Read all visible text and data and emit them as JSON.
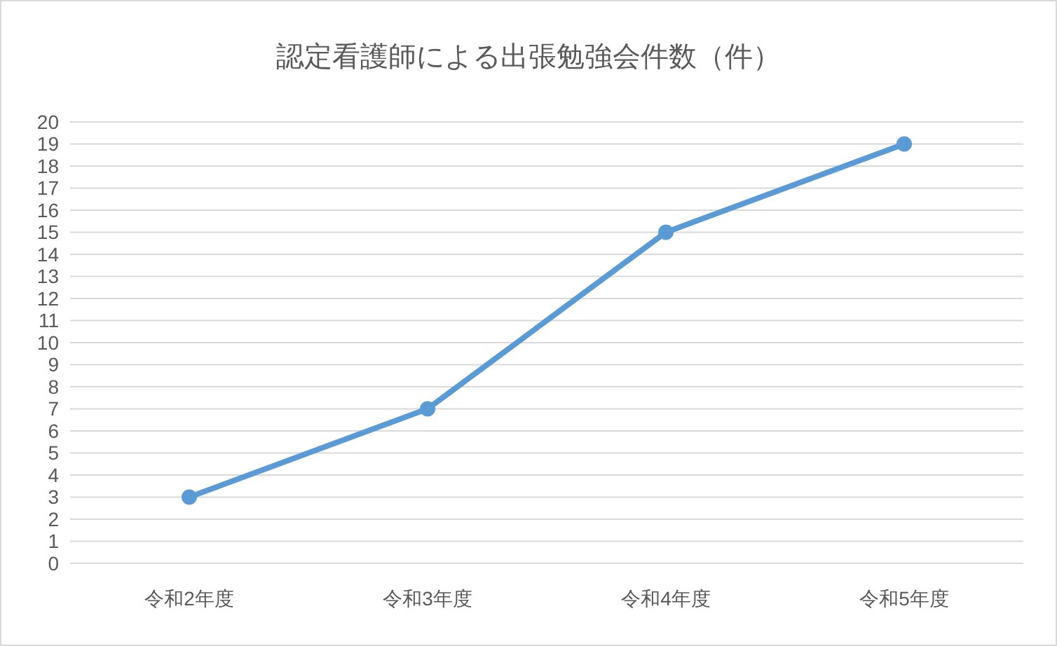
{
  "chart_data": {
    "type": "line",
    "title": "認定看護師による出張勉強会件数（件）",
    "categories": [
      "令和2年度",
      "令和3年度",
      "令和4年度",
      "令和5年度"
    ],
    "series": [
      {
        "color": "#5b9bd5",
        "values": [
          3,
          7,
          15,
          19
        ]
      }
    ],
    "ylim": [
      0,
      20
    ],
    "yticks": [
      0,
      1,
      2,
      3,
      4,
      5,
      6,
      7,
      8,
      9,
      10,
      11,
      12,
      13,
      14,
      15,
      16,
      17,
      18,
      19,
      20
    ],
    "grid": "y",
    "marker": "circle",
    "line_style": "solid"
  }
}
